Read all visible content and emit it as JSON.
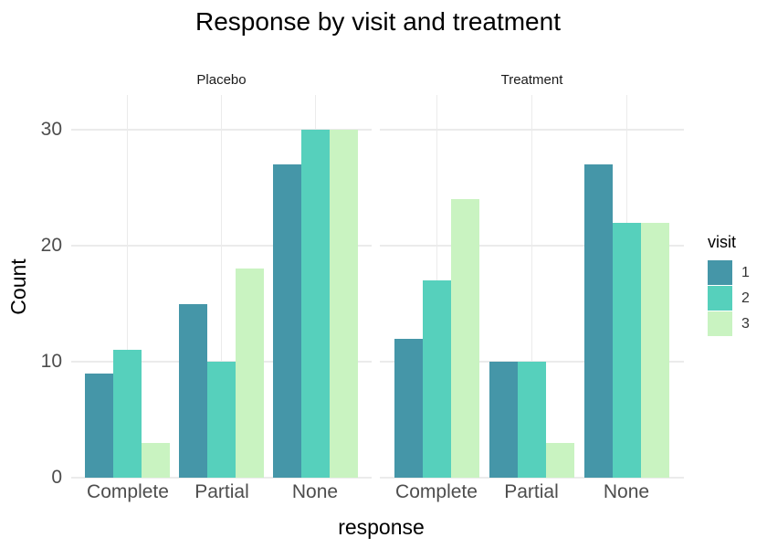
{
  "chart_data": {
    "type": "bar",
    "title": "Response by visit and treatment",
    "xlabel": "response",
    "ylabel": "Count",
    "ylim": [
      0,
      33
    ],
    "yticks": [
      0,
      10,
      20,
      30
    ],
    "ytick_labels": [
      "0",
      "10",
      "20",
      "30"
    ],
    "grid": "major gridlines only, light grey (#ebebeb) on white background",
    "legend": {
      "title": "visit",
      "entries": [
        "1",
        "2",
        "3"
      ],
      "position": "right"
    },
    "colors": [
      "#4596a8",
      "#56d0bc",
      "#c9f3c1"
    ],
    "categories": [
      "Complete",
      "Partial",
      "None"
    ],
    "series_names": [
      "visit 1",
      "visit 2",
      "visit 3"
    ],
    "facets": [
      {
        "label": "Placebo",
        "groups": [
          {
            "category": "Complete",
            "values": [
              9,
              11,
              3
            ]
          },
          {
            "category": "Partial",
            "values": [
              15,
              10,
              18
            ]
          },
          {
            "category": "None",
            "values": [
              27,
              30,
              30
            ]
          }
        ]
      },
      {
        "label": "Treatment",
        "groups": [
          {
            "category": "Complete",
            "values": [
              12,
              17,
              24
            ]
          },
          {
            "category": "Partial",
            "values": [
              10,
              10,
              3
            ]
          },
          {
            "category": "None",
            "values": [
              27,
              22,
              22
            ]
          }
        ]
      }
    ]
  }
}
